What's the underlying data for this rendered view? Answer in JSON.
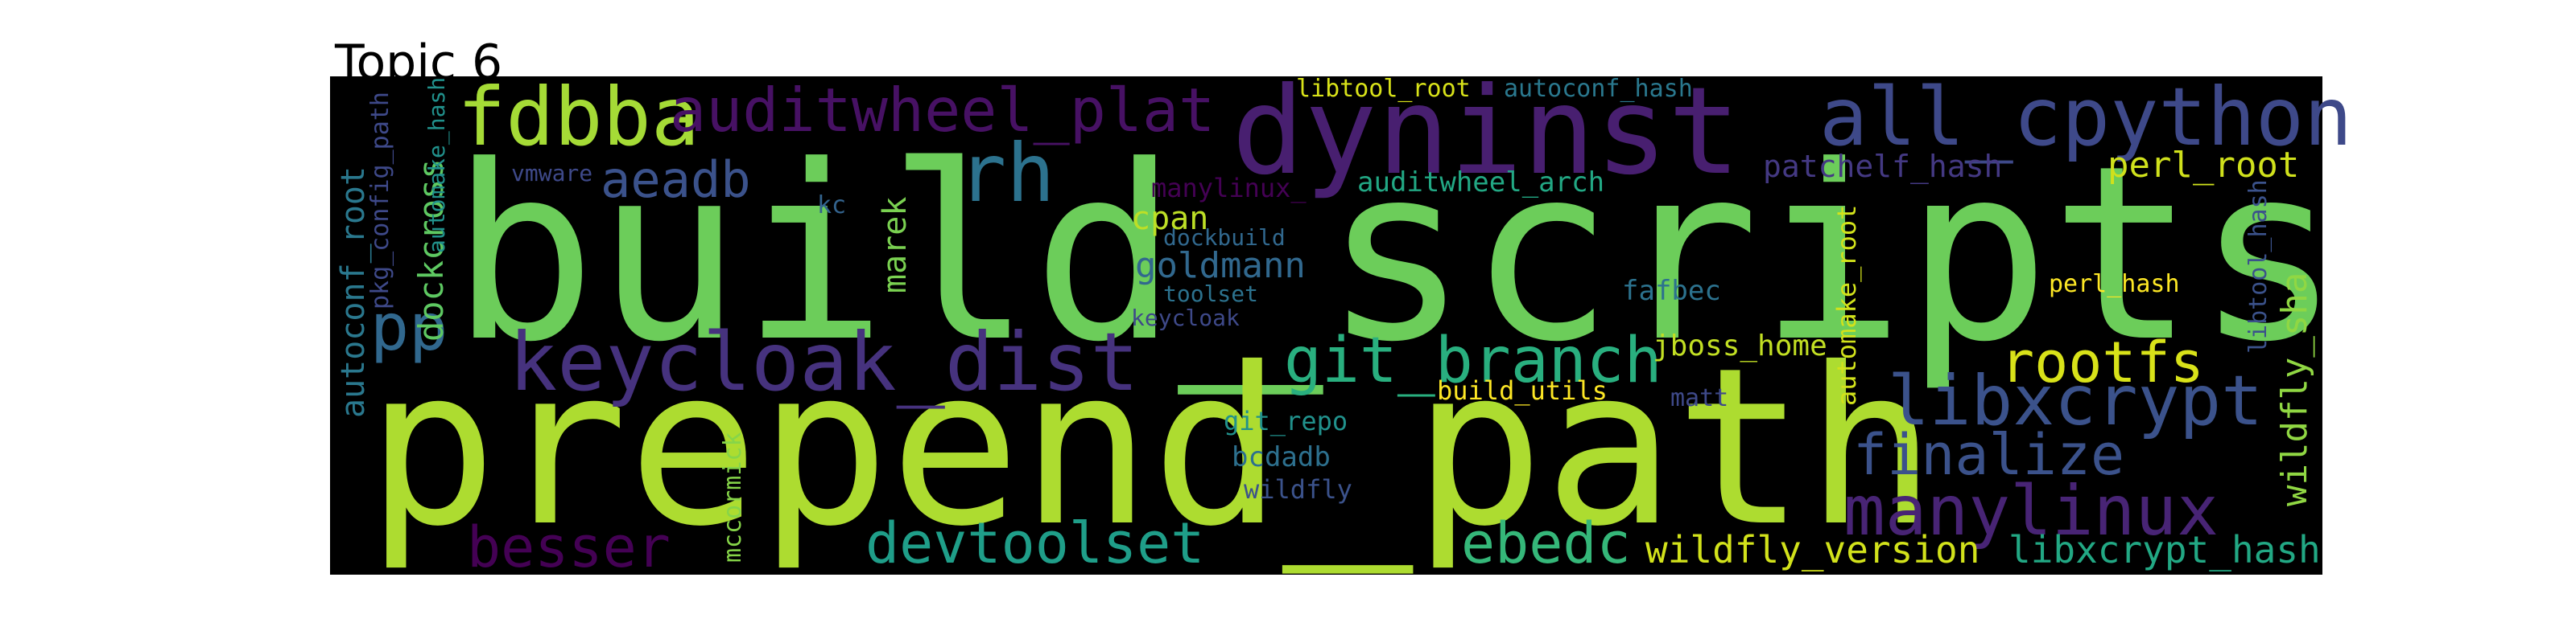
{
  "title": "Topic 6",
  "words": [
    {
      "text": "build_scripts",
      "color": "#6ccd5a"
    },
    {
      "text": "prepend_path",
      "color": "#addc30"
    },
    {
      "text": "dyninst",
      "color": "#481f70"
    },
    {
      "text": "fdbba",
      "color": "#a5db36"
    },
    {
      "text": "auditwheel_plat",
      "color": "#471164"
    },
    {
      "text": "all_cpython",
      "color": "#3e4989"
    },
    {
      "text": "rh",
      "color": "#2c728e"
    },
    {
      "text": "keycloak_dist",
      "color": "#46327e"
    },
    {
      "text": "git_branch",
      "color": "#29af7f"
    },
    {
      "text": "rootfs",
      "color": "#d8e219"
    },
    {
      "text": "libxcrypt",
      "color": "#3b528b"
    },
    {
      "text": "manylinux",
      "color": "#482475"
    },
    {
      "text": "finalize",
      "color": "#3b528b"
    },
    {
      "text": "devtoolset",
      "color": "#1f9e89"
    },
    {
      "text": "ebedc",
      "color": "#35b779"
    },
    {
      "text": "besser",
      "color": "#440154"
    },
    {
      "text": "wildfly_version",
      "color": "#d2e21b"
    },
    {
      "text": "libxcrypt_hash",
      "color": "#22a884"
    },
    {
      "text": "aeadb",
      "color": "#3b528b"
    },
    {
      "text": "pp",
      "color": "#31688e"
    },
    {
      "text": "autoconf_root",
      "color": "#2a788e"
    },
    {
      "text": "dockcross",
      "color": "#5ec962"
    },
    {
      "text": "pkg_config_path",
      "color": "#3e4989"
    },
    {
      "text": "automake_hash",
      "color": "#21918c"
    },
    {
      "text": "patchelf_hash",
      "color": "#443983"
    },
    {
      "text": "perl_root",
      "color": "#d0e11c"
    },
    {
      "text": "libtool_hash",
      "color": "#3b528b"
    },
    {
      "text": "wildfly_sha",
      "color": "#90d743"
    },
    {
      "text": "perl_hash",
      "color": "#fde725"
    },
    {
      "text": "automake_root",
      "color": "#d2e21b"
    },
    {
      "text": "jboss_home",
      "color": "#c2df23"
    },
    {
      "text": "build_utils",
      "color": "#fde725"
    },
    {
      "text": "matt",
      "color": "#3e4989"
    },
    {
      "text": "fafbec",
      "color": "#2c728e"
    },
    {
      "text": "auditwheel_arch",
      "color": "#22a884"
    },
    {
      "text": "manylinux_",
      "color": "#440154"
    },
    {
      "text": "cpan",
      "color": "#bddf26"
    },
    {
      "text": "goldmann",
      "color": "#31688e"
    },
    {
      "text": "dockbuild",
      "color": "#31688e"
    },
    {
      "text": "toolset",
      "color": "#2c728e"
    },
    {
      "text": "keycloak",
      "color": "#3e4989"
    },
    {
      "text": "marek",
      "color": "#7ad151"
    },
    {
      "text": "kc",
      "color": "#33638d"
    },
    {
      "text": "vmware",
      "color": "#3e4989"
    },
    {
      "text": "git_repo",
      "color": "#21918c"
    },
    {
      "text": "bcdadb",
      "color": "#2d708e"
    },
    {
      "text": "wildfly",
      "color": "#3b528b"
    },
    {
      "text": "mccormick",
      "color": "#86d549"
    },
    {
      "text": "libtool_root",
      "color": "#d8e219"
    },
    {
      "text": "autoconf_hash",
      "color": "#2a788e"
    }
  ]
}
